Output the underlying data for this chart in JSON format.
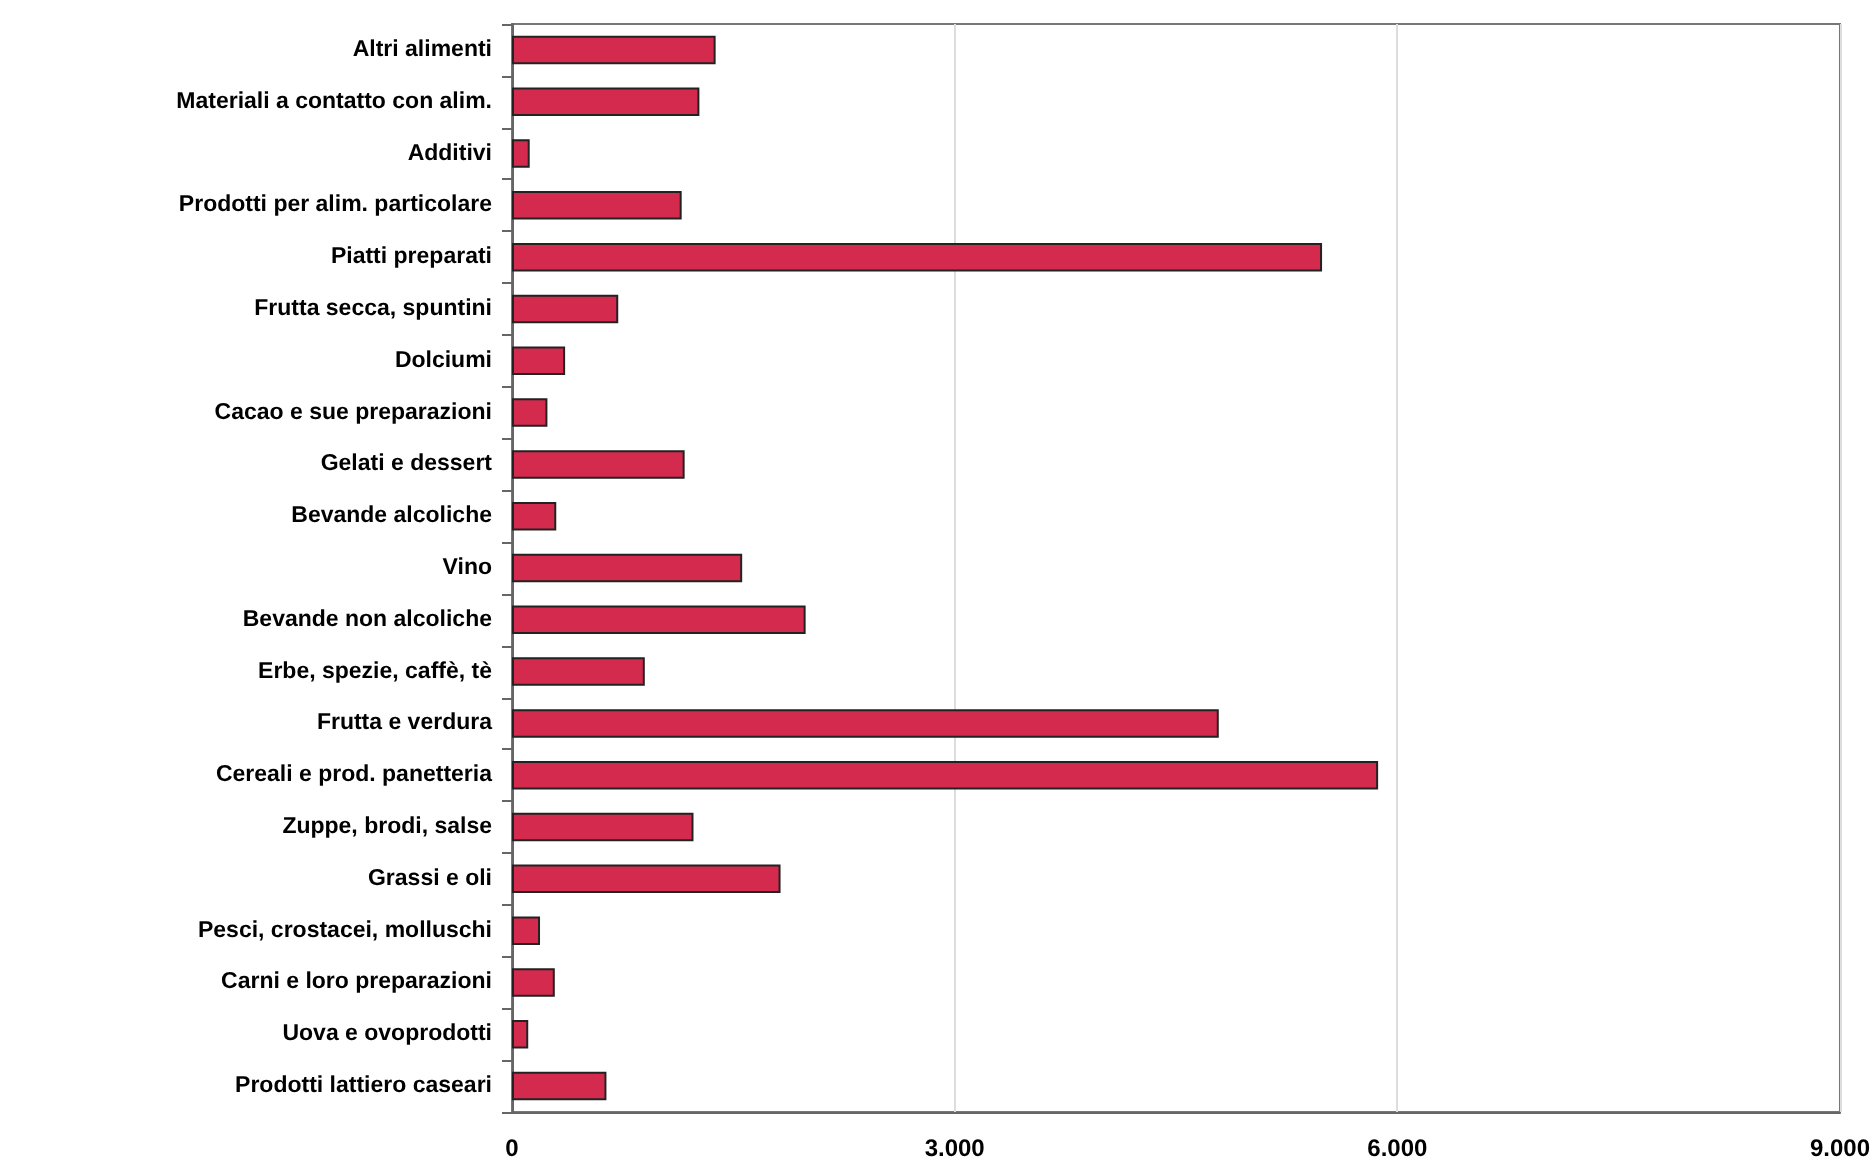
{
  "chart_data": {
    "type": "bar",
    "orientation": "horizontal",
    "categories": [
      "Altri alimenti",
      "Materiali a contatto con alim.",
      "Additivi",
      "Prodotti per alim. particolare",
      "Piatti preparati",
      "Frutta secca, spuntini",
      "Dolciumi",
      "Cacao e sue preparazioni",
      "Gelati e dessert",
      "Bevande alcoliche",
      "Vino",
      "Bevande non alcoliche",
      "Erbe, spezie, caffè, tè",
      "Frutta e verdura",
      "Cereali e prod. panetteria",
      "Zuppe, brodi, salse",
      "Grassi e oli",
      "Pesci, crostacei, molluschi",
      "Carni e loro preparazioni",
      "Uova e ovoprodotti",
      "Prodotti lattiero caseari"
    ],
    "values": [
      1380,
      1270,
      120,
      1150,
      5490,
      720,
      360,
      240,
      1170,
      300,
      1560,
      1990,
      900,
      4790,
      5870,
      1230,
      1820,
      190,
      290,
      110,
      640
    ],
    "color": "#d42a4e",
    "xlim": [
      0,
      9000
    ],
    "xticks": [
      0,
      {
        "value": 3000,
        "label": "3.000"
      },
      {
        "value": 6000,
        "label": "6.000"
      },
      {
        "value": 9000,
        "label": "9.000"
      }
    ],
    "grid": "x"
  }
}
